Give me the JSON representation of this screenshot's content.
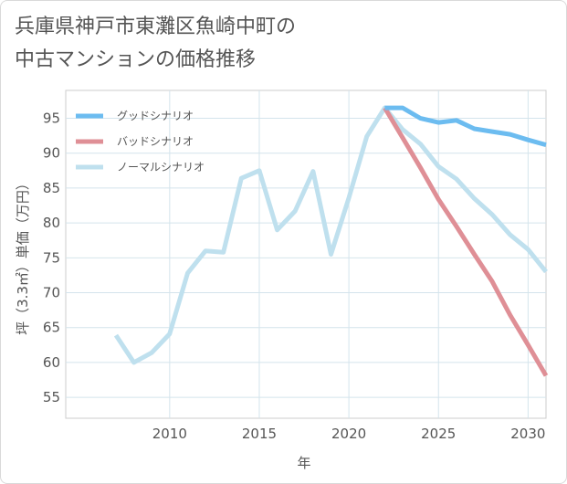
{
  "title_lines": [
    "兵庫県神戸市東灘区魚崎中町の",
    "中古マンションの価格推移"
  ],
  "chart_data": {
    "type": "line",
    "title": "兵庫県神戸市東灘区魚崎中町の中古マンションの価格推移",
    "xlabel": "年",
    "ylabel": "坪（3.3㎡）単価（万円）",
    "xlim": [
      2004.2,
      2031
    ],
    "ylim": [
      52,
      99
    ],
    "xticks": [
      2010,
      2015,
      2020,
      2025,
      2030
    ],
    "yticks": [
      55,
      60,
      65,
      70,
      75,
      80,
      85,
      90,
      95
    ],
    "grid": true,
    "legend_position": "top-left",
    "series": [
      {
        "name": "グッドシナリオ",
        "color": "#6cbcf0",
        "x": [
          2022,
          2023,
          2024,
          2025,
          2026,
          2027,
          2028,
          2029,
          2030,
          2031
        ],
        "values": [
          96.5,
          96.5,
          95.0,
          94.4,
          94.7,
          93.5,
          93.1,
          92.7,
          91.9,
          91.2
        ]
      },
      {
        "name": "バッドシナリオ",
        "color": "#df8f96",
        "x": [
          2022,
          2023,
          2024,
          2025,
          2026,
          2027,
          2028,
          2029,
          2030,
          2031
        ],
        "values": [
          96.5,
          92.2,
          87.9,
          83.4,
          79.5,
          75.5,
          71.6,
          66.8,
          62.5,
          58.1
        ]
      },
      {
        "name": "ノーマルシナリオ",
        "color": "#bfe0ee",
        "x": [
          2007,
          2008,
          2009,
          2010,
          2011,
          2012,
          2013,
          2014,
          2015,
          2016,
          2017,
          2018,
          2019,
          2020,
          2021,
          2022,
          2023,
          2024,
          2025,
          2026,
          2027,
          2028,
          2029,
          2030,
          2031
        ],
        "values": [
          63.9,
          60.0,
          61.4,
          64.1,
          72.8,
          76.0,
          75.8,
          86.4,
          87.5,
          79.0,
          81.7,
          87.4,
          75.5,
          83.6,
          92.4,
          96.5,
          93.4,
          91.3,
          88.1,
          86.3,
          83.5,
          81.2,
          78.3,
          76.2,
          73.0
        ]
      }
    ]
  }
}
